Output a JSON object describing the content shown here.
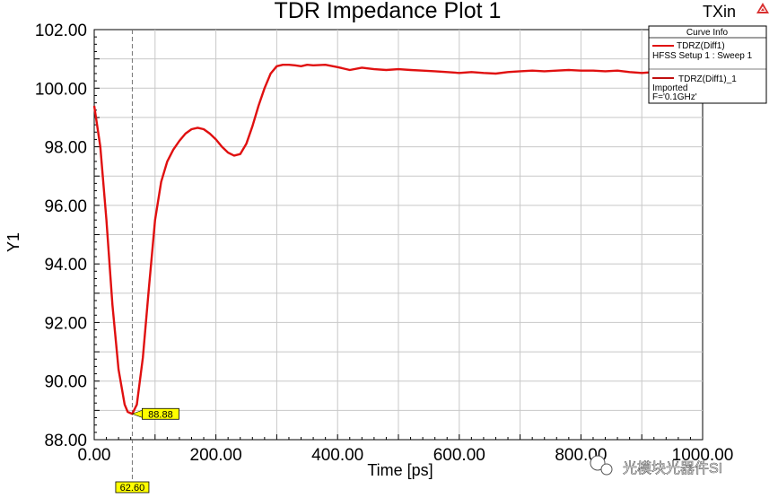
{
  "chart_data": {
    "type": "line",
    "title": "TDR Impedance Plot 1",
    "corner_label": "TXin",
    "xlabel": "Time [ps]",
    "ylabel": "Y1",
    "xlim": [
      0,
      1000
    ],
    "ylim": [
      88,
      102
    ],
    "x_ticks": [
      "0.00",
      "200.00",
      "400.00",
      "600.00",
      "800.00",
      "1000.00"
    ],
    "y_ticks": [
      "88.00",
      "90.00",
      "92.00",
      "94.00",
      "96.00",
      "98.00",
      "100.00",
      "102.00"
    ],
    "grid": true,
    "legend": {
      "title": "Curve Info",
      "position": "top-right",
      "entries": [
        {
          "label": "TDRZ(Diff1)",
          "sublabel": "HFSS Setup 1 : Sweep 1",
          "color": "#e01010"
        },
        {
          "label": "TDRZ(Diff1)_1",
          "sublabel": "Imported",
          "sublabel2": "F='0.1GHz'",
          "color": "#c01010"
        }
      ]
    },
    "series": [
      {
        "color": "#e01010",
        "x": [
          0,
          10,
          20,
          30,
          40,
          50,
          55,
          62.6,
          70,
          80,
          90,
          100,
          110,
          120,
          130,
          140,
          150,
          160,
          170,
          180,
          190,
          200,
          210,
          220,
          230,
          240,
          250,
          260,
          270,
          280,
          290,
          300,
          310,
          320,
          330,
          340,
          350,
          360,
          380,
          400,
          420,
          440,
          460,
          480,
          500,
          520,
          540,
          560,
          580,
          600,
          620,
          640,
          660,
          680,
          700,
          720,
          740,
          760,
          780,
          800,
          820,
          840,
          860,
          880,
          900,
          920,
          940
        ],
        "y": [
          99.4,
          98.0,
          95.5,
          92.6,
          90.4,
          89.2,
          88.95,
          88.88,
          89.2,
          90.8,
          93.2,
          95.5,
          96.8,
          97.5,
          97.9,
          98.2,
          98.45,
          98.6,
          98.65,
          98.6,
          98.45,
          98.25,
          98.0,
          97.8,
          97.7,
          97.75,
          98.1,
          98.7,
          99.4,
          100.0,
          100.5,
          100.75,
          100.8,
          100.8,
          100.78,
          100.75,
          100.8,
          100.78,
          100.8,
          100.72,
          100.62,
          100.7,
          100.65,
          100.62,
          100.65,
          100.62,
          100.6,
          100.58,
          100.55,
          100.52,
          100.55,
          100.52,
          100.5,
          100.55,
          100.58,
          100.6,
          100.58,
          100.6,
          100.62,
          100.6,
          100.6,
          100.58,
          100.6,
          100.55,
          100.52,
          100.55,
          100.5
        ]
      }
    ],
    "marker": {
      "x": 62.6,
      "y": 88.88,
      "x_label": "62.60",
      "y_label": "88.88"
    }
  },
  "colors": {
    "grid": "#c8c8c8",
    "marker_fill": "#ffff00",
    "legend_border": "#000000",
    "corner_icon": "#d83030"
  },
  "icons": {
    "corner": "warning-triangle-icon"
  },
  "watermark": {
    "text": "光模块光器件SI"
  }
}
